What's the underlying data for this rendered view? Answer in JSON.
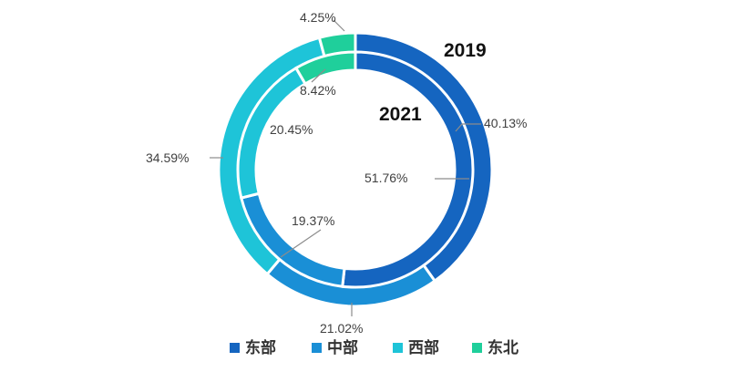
{
  "chart_data": {
    "type": "donut",
    "categories": [
      "东部",
      "中部",
      "西部",
      "东北"
    ],
    "colors": [
      "#1565c0",
      "#1a8fd6",
      "#1ec4d8",
      "#1fcf9b"
    ],
    "series": [
      {
        "name": "2019",
        "ring": "outer",
        "values": [
          40.13,
          21.02,
          34.59,
          4.25
        ],
        "labels": [
          "40.13%",
          "21.02%",
          "34.59%",
          "4.25%"
        ]
      },
      {
        "name": "2021",
        "ring": "inner",
        "values": [
          51.76,
          19.37,
          20.45,
          8.42
        ],
        "labels": [
          "51.76%",
          "19.37%",
          "20.45%",
          "8.42%"
        ]
      }
    ],
    "legend": {
      "position": "bottom",
      "items": [
        "东部",
        "中部",
        "西部",
        "东北"
      ]
    }
  }
}
